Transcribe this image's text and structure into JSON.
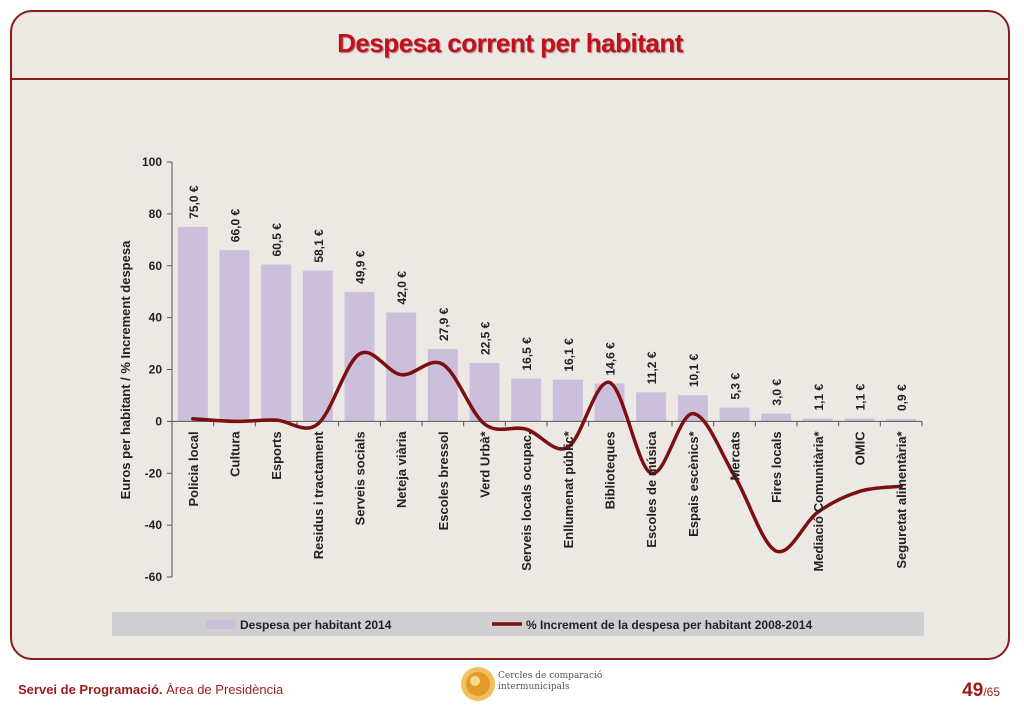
{
  "header": {
    "title": "Despesa corrent per habitant"
  },
  "footer": {
    "org_bold": "Servei de Programació.",
    "org_rest": " Àrea de Presidència",
    "page_current": "49",
    "page_total": "/65",
    "logo_line1": "Cercles de comparació",
    "logo_line2": "intermunicipals"
  },
  "chart_data": {
    "type": "bar",
    "ylabel": "Euros per habitant / % Increment  despesa",
    "ylim": [
      -60,
      100
    ],
    "yticks": [
      100,
      80,
      60,
      40,
      20,
      0,
      -20,
      -40,
      -60
    ],
    "legend_position": "bottom",
    "categories": [
      "Policia local",
      "Cultura",
      "Esports",
      "Residus i tractament",
      "Serveis socials",
      "Neteja viària",
      "Escoles bressol",
      "Verd Urbà*",
      "Serveis locals ocupac.",
      "Enllumenat públic*",
      "Biblioteques",
      "Escoles de música",
      "Espais escènics*",
      "Mercats",
      "Fires locals",
      "Mediació Comunitària*",
      "OMIC",
      "Seguretat alimentària*"
    ],
    "series": [
      {
        "name": "Despesa per habitant 2014",
        "type": "bar",
        "color": "#cbbfdc",
        "values": [
          75.0,
          66.0,
          60.5,
          58.1,
          49.9,
          42.0,
          27.9,
          22.5,
          16.5,
          16.1,
          14.6,
          11.2,
          10.1,
          5.3,
          3.0,
          1.1,
          1.1,
          0.9
        ],
        "labels": [
          "75,0 €",
          "66,0 €",
          "60,5 €",
          "58,1 €",
          "49,9 €",
          "42,0 €",
          "27,9 €",
          "22,5 €",
          "16,5 €",
          "16,1 €",
          "14,6 €",
          "11,2 €",
          "10,1 €",
          "5,3 €",
          "3,0 €",
          "1,1 €",
          "1,1 €",
          "0,9 €"
        ]
      },
      {
        "name": "% Increment de la despesa per habitant 2008-2014",
        "type": "line",
        "color": "#7a1010",
        "values": [
          1,
          0,
          0.5,
          -1,
          26,
          18,
          22,
          -1,
          -3,
          -10,
          15,
          -20,
          3,
          -21,
          -50,
          -35,
          -27,
          -25
        ]
      }
    ]
  }
}
